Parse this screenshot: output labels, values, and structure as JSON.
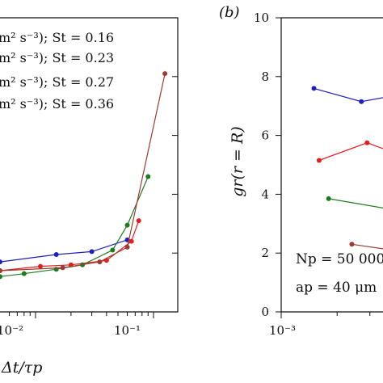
{
  "chart_data": [
    {
      "type": "line",
      "xscale": "log",
      "xlim": [
        0.005,
        0.2
      ],
      "ylim": [
        0,
        10
      ],
      "x_tick_labels": [
        "10⁻²",
        "10⁻¹"
      ],
      "xlabel": "Δt/τp",
      "legend": [
        "m² s⁻³); St = 0.16",
        "m² s⁻³); St = 0.23",
        "m² s⁻³); St = 0.27",
        "m² s⁻³); St = 0.36"
      ],
      "legend_placement": "top-left",
      "series": [
        {
          "color": "#1f1fbf",
          "x": [
            0.005,
            0.015,
            0.03,
            0.06
          ],
          "y": [
            1.7,
            1.95,
            2.05,
            2.45
          ]
        },
        {
          "color": "#e02020",
          "x": [
            0.005,
            0.011,
            0.02,
            0.04,
            0.065,
            0.075
          ],
          "y": [
            1.4,
            1.55,
            1.6,
            1.75,
            2.4,
            3.1
          ]
        },
        {
          "color": "#1e7a1e",
          "x": [
            0.005,
            0.008,
            0.015,
            0.025,
            0.045,
            0.06,
            0.09
          ],
          "y": [
            1.2,
            1.3,
            1.45,
            1.6,
            2.1,
            2.95,
            4.6
          ]
        },
        {
          "color": "#9c3b30",
          "x": [
            0.005,
            0.017,
            0.035,
            0.06,
            0.125
          ],
          "y": [
            1.4,
            1.5,
            1.7,
            2.2,
            8.1
          ]
        }
      ]
    },
    {
      "type": "line",
      "panel_label": "(b)",
      "xscale": "log",
      "x_tick_labels": [
        "10⁻³"
      ],
      "ylim": [
        0,
        10
      ],
      "y_ticks": [
        0,
        2,
        4,
        6,
        8,
        10
      ],
      "y_tick_labels": [
        "0",
        "2",
        "4",
        "6",
        "8",
        "10"
      ],
      "ylabel": "gr(r = R)",
      "annotations": [
        "Np = 50 000",
        "ap = 40 μm"
      ],
      "series": [
        {
          "color": "#1f1fbf",
          "x": [
            0.0015,
            0.0027,
            0.0045
          ],
          "y": [
            7.6,
            7.15,
            7.4
          ]
        },
        {
          "color": "#e02020",
          "x": [
            0.0016,
            0.0029,
            0.0045
          ],
          "y": [
            5.15,
            5.75,
            5.3
          ]
        },
        {
          "color": "#1e7a1e",
          "x": [
            0.0018,
            0.0038,
            0.0045
          ],
          "y": [
            3.85,
            3.5,
            3.3
          ]
        },
        {
          "color": "#9c3b30",
          "x": [
            0.0024,
            0.0045
          ],
          "y": [
            2.3,
            2.05
          ]
        }
      ]
    }
  ]
}
